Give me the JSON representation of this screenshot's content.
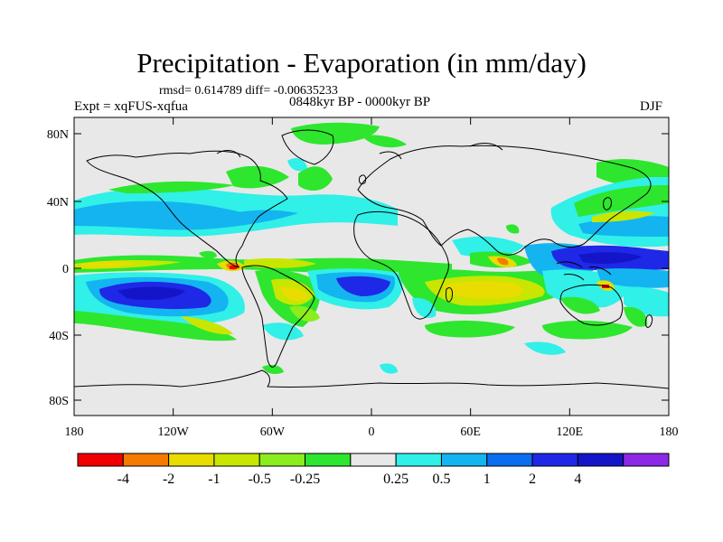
{
  "header": {
    "title": "Precipitation - Evaporation (in mm/day)",
    "stats": "rmsd= 0.614789 diff= -0.00635233",
    "period": "0848kyr BP - 0000kyr BP",
    "experiment": "Expt = xqFUS-xqfua",
    "season": "DJF"
  },
  "map": {
    "lat_labels": [
      "80N",
      "40N",
      "0",
      "40S",
      "80S"
    ],
    "lon_labels": [
      "180",
      "120W",
      "60W",
      "0",
      "60E",
      "120E",
      "180"
    ]
  },
  "legend": {
    "colors": [
      "#f00000",
      "#f57a00",
      "#e8dc00",
      "#c8e600",
      "#8ced1c",
      "#2ee62e",
      "#e8e8e8",
      "#30f0e8",
      "#14b4f0",
      "#0a6ef0",
      "#1e28e6",
      "#1414c8",
      "#8c28e6"
    ],
    "labels": [
      "-4",
      "-2",
      "-1",
      "-0.5",
      "-0.25",
      "0.25",
      "0.5",
      "1",
      "2",
      "4"
    ]
  }
}
